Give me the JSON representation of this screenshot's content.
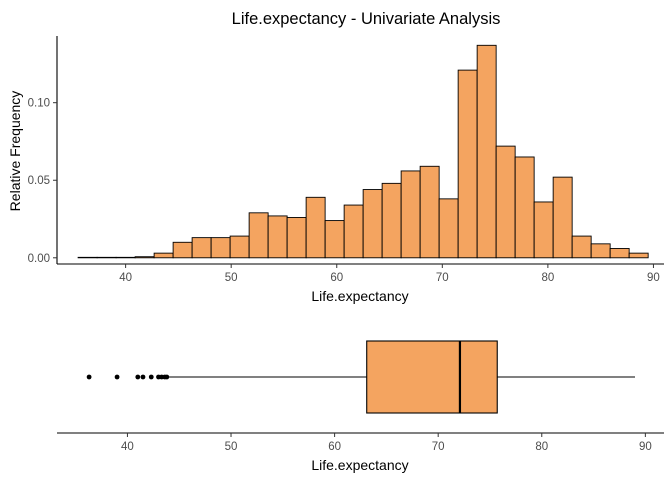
{
  "chart_data": [
    {
      "type": "bar",
      "subtype": "histogram",
      "title": "Life.expectancy - Univariate Analysis",
      "xlabel": "Life.expectancy",
      "ylabel": "Relative Frequency",
      "xlim": [
        33.5,
        91
      ],
      "ylim": [
        -0.004,
        0.143
      ],
      "x_ticks": [
        40,
        50,
        60,
        70,
        80,
        90
      ],
      "y_ticks": [
        0.0,
        0.05,
        0.1
      ],
      "y_tick_labels": [
        "0.00",
        "0.05",
        "0.10"
      ],
      "bin_width": 1.8,
      "bin_starts": [
        35.5,
        37.3,
        39.1,
        40.9,
        42.7,
        44.5,
        46.3,
        48.1,
        49.9,
        51.7,
        53.5,
        55.3,
        57.1,
        58.9,
        60.7,
        62.5,
        64.3,
        66.1,
        67.9,
        69.7,
        71.5,
        73.3,
        75.1,
        76.9,
        78.7,
        80.5,
        82.3,
        84.1,
        85.9,
        87.7
      ],
      "values": [
        0.0003,
        0.0003,
        0.0003,
        0.0007,
        0.003,
        0.01,
        0.013,
        0.013,
        0.014,
        0.029,
        0.027,
        0.026,
        0.039,
        0.024,
        0.034,
        0.044,
        0.048,
        0.056,
        0.059,
        0.038,
        0.121,
        0.137,
        0.072,
        0.065,
        0.036,
        0.052,
        0.014,
        0.009,
        0.006,
        0.003
      ],
      "grid": false,
      "colors": {
        "fill": "#F4A460",
        "stroke": "#000000"
      }
    },
    {
      "type": "boxplot",
      "xlabel": "Life.expectancy",
      "xlim": [
        33.2,
        91.8
      ],
      "x_ticks": [
        40,
        50,
        60,
        70,
        80,
        90
      ],
      "q1": 63.1,
      "median": 72.1,
      "q3": 75.7,
      "whisker_low": 44.0,
      "whisker_high": 89.0,
      "outliers": [
        36.3,
        39.0,
        41.0,
        41.5,
        42.3,
        43.0,
        43.3,
        43.6,
        43.8
      ],
      "colors": {
        "fill": "#F4A460",
        "stroke": "#000000"
      }
    }
  ]
}
